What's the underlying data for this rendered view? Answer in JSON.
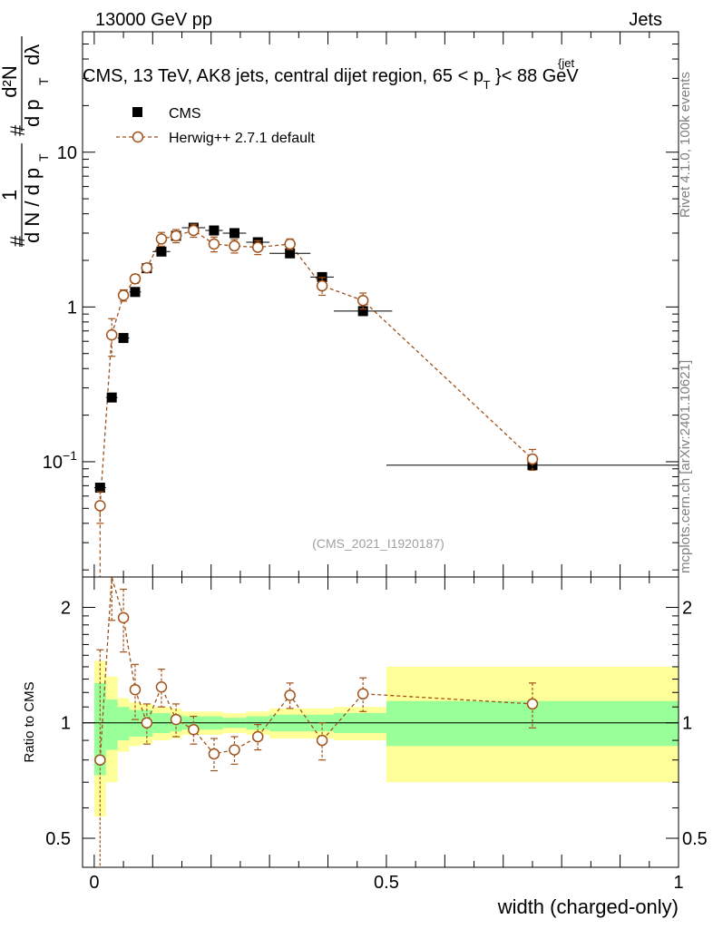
{
  "header": {
    "left": "13000 GeV pp",
    "right": "Jets"
  },
  "side_labels": {
    "top": "Rivet 4.1.0,  100k events",
    "bottom": "mcplots.cern.ch [arXiv:2401.10621]"
  },
  "colors": {
    "data": "#000000",
    "mc": "#a0521a",
    "band_inner": "#99ff99",
    "band_outer": "#ffff99"
  },
  "chart_data": [
    {
      "type": "scatter",
      "panel": "main",
      "title_main": "CMS, 13 TeV, AK8 jets, central dijet region, 65 <",
      "title_var": "p",
      "title_sup": "{jet",
      "title_sub": "T",
      "title_end": "}< 88 GeV",
      "ylabel": {
        "hash1": "#",
        "one": "1",
        "dN": "d N / d p",
        "sub1": "T",
        "hash2": "#",
        "d2N": "d²N",
        "dpt": "d p",
        "sub2": "T",
        "dlambda": "dλ"
      },
      "yscale": "log",
      "ylim": [
        0.018,
        60
      ],
      "xlim": [
        -0.02,
        1.0
      ],
      "yticks": [
        {
          "value": 0.1,
          "base": "10",
          "exp": "−1"
        },
        {
          "value": 1,
          "base": "1",
          "exp": ""
        },
        {
          "value": 10,
          "base": "10",
          "exp": ""
        }
      ],
      "legend": {
        "data_label": "CMS",
        "mc_label": "Herwig++ 2.7.1 default"
      },
      "watermark": "(CMS_2021_I1920187)",
      "series": [
        {
          "name": "CMS",
          "x": [
            0.01,
            0.03,
            0.05,
            0.07,
            0.09,
            0.115,
            0.14,
            0.17,
            0.205,
            0.24,
            0.28,
            0.335,
            0.39,
            0.46,
            0.75
          ],
          "y": [
            0.068,
            0.26,
            0.63,
            1.25,
            1.78,
            2.28,
            2.88,
            3.25,
            3.12,
            3.0,
            2.62,
            2.22,
            1.56,
            0.94,
            0.095
          ],
          "xerr": [
            0.01,
            0.01,
            0.01,
            0.01,
            0.01,
            0.015,
            0.01,
            0.02,
            0.015,
            0.02,
            0.02,
            0.035,
            0.02,
            0.05,
            0.25
          ]
        },
        {
          "name": "Herwig++ 2.7.1 default",
          "x": [
            0.01,
            0.03,
            0.05,
            0.07,
            0.09,
            0.115,
            0.14,
            0.17,
            0.205,
            0.24,
            0.28,
            0.335,
            0.39,
            0.46,
            0.75
          ],
          "y": [
            0.052,
            0.66,
            1.19,
            1.52,
            1.79,
            2.75,
            2.88,
            3.12,
            2.55,
            2.48,
            2.43,
            2.55,
            1.37,
            1.1,
            0.104
          ],
          "yerr": [
            0.012,
            0.18,
            0.1,
            0.1,
            0.1,
            0.28,
            0.28,
            0.3,
            0.28,
            0.25,
            0.25,
            0.2,
            0.18,
            0.13,
            0.016
          ]
        }
      ]
    },
    {
      "type": "scatter",
      "panel": "ratio",
      "ylabel": "Ratio to CMS",
      "xlabel": "width (charged-only)",
      "yscale": "log",
      "ylim": [
        0.42,
        2.4
      ],
      "xlim": [
        -0.02,
        1.0
      ],
      "yticks": [
        {
          "value": 0.5,
          "label": "0.5"
        },
        {
          "value": 1,
          "label": "1"
        },
        {
          "value": 2,
          "label": "2"
        }
      ],
      "xticks": [
        {
          "value": 0,
          "label": "0"
        },
        {
          "value": 0.5,
          "label": "0.5"
        },
        {
          "value": 1,
          "label": "1"
        }
      ],
      "bands": {
        "edges": [
          0.0,
          0.02,
          0.04,
          0.06,
          0.08,
          0.1,
          0.13,
          0.15,
          0.19,
          0.22,
          0.26,
          0.3,
          0.37,
          0.41,
          0.5,
          1.0
        ],
        "inner_lo": [
          0.73,
          0.85,
          0.9,
          0.92,
          0.92,
          0.94,
          0.95,
          0.96,
          0.96,
          0.97,
          0.96,
          0.95,
          0.95,
          0.94,
          0.87
        ],
        "inner_hi": [
          1.27,
          1.15,
          1.1,
          1.08,
          1.08,
          1.06,
          1.05,
          1.04,
          1.04,
          1.03,
          1.04,
          1.05,
          1.05,
          1.06,
          1.14
        ],
        "outer_lo": [
          0.57,
          0.7,
          0.84,
          0.87,
          0.88,
          0.9,
          0.91,
          0.93,
          0.93,
          0.94,
          0.93,
          0.91,
          0.91,
          0.9,
          0.7
        ],
        "outer_hi": [
          1.45,
          1.32,
          1.16,
          1.13,
          1.12,
          1.1,
          1.09,
          1.07,
          1.07,
          1.06,
          1.07,
          1.09,
          1.09,
          1.1,
          1.4
        ]
      },
      "series": [
        {
          "name": "Herwig++ / CMS",
          "x": [
            0.01,
            0.03,
            0.05,
            0.07,
            0.09,
            0.115,
            0.14,
            0.17,
            0.205,
            0.24,
            0.28,
            0.335,
            0.39,
            0.46,
            0.75
          ],
          "y": [
            0.8,
            2.55,
            1.88,
            1.22,
            1.0,
            1.24,
            1.02,
            0.96,
            0.83,
            0.85,
            0.92,
            1.18,
            0.9,
            1.19,
            1.12
          ],
          "yerr": [
            0.75,
            0.7,
            0.35,
            0.2,
            0.12,
            0.14,
            0.1,
            0.08,
            0.08,
            0.07,
            0.07,
            0.09,
            0.1,
            0.12,
            0.15
          ]
        }
      ]
    }
  ]
}
